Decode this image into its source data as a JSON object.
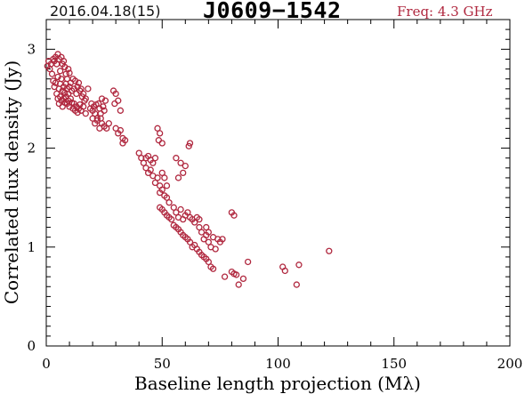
{
  "header": {
    "date": "2016.04.18(15)",
    "source": "J0609−1542",
    "freq": "Freq: 4.3 GHz"
  },
  "colors": {
    "marker": "#b0283f",
    "freq_text": "#b0283f",
    "axis": "#000000"
  },
  "chart_data": {
    "type": "scatter",
    "xlabel": "Baseline length projection (Mλ)",
    "ylabel": "Correlated flux density (Jy)",
    "xlim": [
      0,
      200
    ],
    "ylim": [
      0,
      3.3
    ],
    "x_ticks": [
      0,
      50,
      100,
      150,
      200
    ],
    "y_ticks": [
      0,
      1,
      2,
      3
    ],
    "grid": false,
    "points": [
      [
        0.5,
        2.83
      ],
      [
        1,
        2.88
      ],
      [
        1.5,
        2.8
      ],
      [
        2,
        2.85
      ],
      [
        2.5,
        2.75
      ],
      [
        3,
        2.9
      ],
      [
        3.5,
        2.88
      ],
      [
        4,
        2.92
      ],
      [
        4.5,
        2.85
      ],
      [
        5,
        2.95
      ],
      [
        5.5,
        2.9
      ],
      [
        6,
        2.78
      ],
      [
        6.5,
        2.92
      ],
      [
        7,
        2.85
      ],
      [
        7.5,
        2.88
      ],
      [
        8,
        2.82
      ],
      [
        8.5,
        2.75
      ],
      [
        9,
        2.7
      ],
      [
        9.5,
        2.8
      ],
      [
        10,
        2.76
      ],
      [
        3,
        2.68
      ],
      [
        3.5,
        2.62
      ],
      [
        4,
        2.66
      ],
      [
        4.5,
        2.55
      ],
      [
        5,
        2.72
      ],
      [
        5.5,
        2.6
      ],
      [
        6,
        2.65
      ],
      [
        6.5,
        2.7
      ],
      [
        7,
        2.58
      ],
      [
        7.5,
        2.62
      ],
      [
        8,
        2.56
      ],
      [
        8.5,
        2.65
      ],
      [
        9,
        2.6
      ],
      [
        9.5,
        2.55
      ],
      [
        10,
        2.62
      ],
      [
        10.5,
        2.66
      ],
      [
        11,
        2.58
      ],
      [
        11.5,
        2.7
      ],
      [
        12,
        2.6
      ],
      [
        12.5,
        2.68
      ],
      [
        13,
        2.55
      ],
      [
        13.5,
        2.62
      ],
      [
        14,
        2.66
      ],
      [
        14.5,
        2.58
      ],
      [
        15,
        2.6
      ],
      [
        15.5,
        2.52
      ],
      [
        16,
        2.55
      ],
      [
        16.5,
        2.48
      ],
      [
        17,
        2.5
      ],
      [
        5,
        2.5
      ],
      [
        5.5,
        2.45
      ],
      [
        6,
        2.52
      ],
      [
        6.5,
        2.48
      ],
      [
        7,
        2.42
      ],
      [
        7.5,
        2.5
      ],
      [
        8,
        2.46
      ],
      [
        8.5,
        2.52
      ],
      [
        9,
        2.45
      ],
      [
        9.5,
        2.48
      ],
      [
        10,
        2.42
      ],
      [
        10.5,
        2.5
      ],
      [
        11,
        2.46
      ],
      [
        11.5,
        2.4
      ],
      [
        12,
        2.45
      ],
      [
        12.5,
        2.38
      ],
      [
        13,
        2.42
      ],
      [
        13.5,
        2.36
      ],
      [
        14,
        2.4
      ],
      [
        14.5,
        2.44
      ],
      [
        15,
        2.38
      ],
      [
        16,
        2.42
      ],
      [
        17,
        2.35
      ],
      [
        18,
        2.6
      ],
      [
        19,
        2.4
      ],
      [
        19.5,
        2.45
      ],
      [
        20,
        2.38
      ],
      [
        20.5,
        2.42
      ],
      [
        21,
        2.35
      ],
      [
        21.5,
        2.44
      ],
      [
        22,
        2.3
      ],
      [
        22.5,
        2.45
      ],
      [
        23,
        2.4
      ],
      [
        23.5,
        2.35
      ],
      [
        24,
        2.5
      ],
      [
        24.5,
        2.42
      ],
      [
        25,
        2.38
      ],
      [
        25.5,
        2.48
      ],
      [
        20,
        2.3
      ],
      [
        21,
        2.25
      ],
      [
        22,
        2.28
      ],
      [
        23,
        2.2
      ],
      [
        23.5,
        2.3
      ],
      [
        24,
        2.25
      ],
      [
        25,
        2.22
      ],
      [
        26,
        2.2
      ],
      [
        27,
        2.25
      ],
      [
        29,
        2.58
      ],
      [
        30,
        2.55
      ],
      [
        29.5,
        2.45
      ],
      [
        31,
        2.48
      ],
      [
        32,
        2.38
      ],
      [
        30,
        2.2
      ],
      [
        31,
        2.15
      ],
      [
        32,
        2.18
      ],
      [
        33,
        2.1
      ],
      [
        34,
        2.08
      ],
      [
        33,
        2.05
      ],
      [
        40,
        1.95
      ],
      [
        41,
        1.9
      ],
      [
        42,
        1.85
      ],
      [
        43,
        1.9
      ],
      [
        44,
        1.92
      ],
      [
        45,
        1.88
      ],
      [
        46,
        1.85
      ],
      [
        47,
        1.9
      ],
      [
        43,
        1.8
      ],
      [
        44,
        1.75
      ],
      [
        45,
        1.78
      ],
      [
        46,
        1.72
      ],
      [
        47,
        1.65
      ],
      [
        48,
        1.7
      ],
      [
        49,
        1.62
      ],
      [
        50,
        1.75
      ],
      [
        51,
        1.7
      ],
      [
        52,
        1.62
      ],
      [
        48,
        2.2
      ],
      [
        49,
        2.15
      ],
      [
        48.5,
        2.08
      ],
      [
        50,
        2.05
      ],
      [
        49,
        1.55
      ],
      [
        50,
        1.58
      ],
      [
        51,
        1.52
      ],
      [
        52,
        1.5
      ],
      [
        53,
        1.45
      ],
      [
        49,
        1.4
      ],
      [
        50,
        1.38
      ],
      [
        51,
        1.35
      ],
      [
        52,
        1.32
      ],
      [
        53,
        1.3
      ],
      [
        54,
        1.28
      ],
      [
        55,
        1.4
      ],
      [
        56,
        1.35
      ],
      [
        57,
        1.3
      ],
      [
        58,
        1.38
      ],
      [
        59,
        1.28
      ],
      [
        60,
        1.32
      ],
      [
        61,
        1.35
      ],
      [
        62,
        1.3
      ],
      [
        63,
        1.28
      ],
      [
        64,
        1.25
      ],
      [
        65,
        1.3
      ],
      [
        66,
        1.28
      ],
      [
        55,
        1.22
      ],
      [
        56,
        1.2
      ],
      [
        57,
        1.18
      ],
      [
        58,
        1.15
      ],
      [
        59,
        1.12
      ],
      [
        60,
        1.1
      ],
      [
        61,
        1.08
      ],
      [
        62,
        1.05
      ],
      [
        63,
        1.0
      ],
      [
        64,
        1.02
      ],
      [
        65,
        0.98
      ],
      [
        66,
        0.95
      ],
      [
        67,
        0.92
      ],
      [
        68,
        0.9
      ],
      [
        69,
        0.88
      ],
      [
        70,
        0.85
      ],
      [
        71,
        0.8
      ],
      [
        72,
        0.78
      ],
      [
        62,
        2.05
      ],
      [
        61.5,
        2.02
      ],
      [
        56,
        1.9
      ],
      [
        58,
        1.85
      ],
      [
        60,
        1.82
      ],
      [
        59,
        1.75
      ],
      [
        57,
        1.7
      ],
      [
        68,
        1.08
      ],
      [
        69,
        1.12
      ],
      [
        70,
        1.15
      ],
      [
        72,
        1.1
      ],
      [
        74,
        1.08
      ],
      [
        75,
        1.05
      ],
      [
        66,
        1.2
      ],
      [
        67,
        1.15
      ],
      [
        69,
        1.2
      ],
      [
        70,
        1.05
      ],
      [
        71,
        1.0
      ],
      [
        73,
        0.98
      ],
      [
        76,
        1.08
      ],
      [
        80,
        1.35
      ],
      [
        81,
        1.32
      ],
      [
        80,
        0.75
      ],
      [
        81,
        0.73
      ],
      [
        82,
        0.72
      ],
      [
        85,
        0.68
      ],
      [
        87,
        0.85
      ],
      [
        83,
        0.62
      ],
      [
        77,
        0.7
      ],
      [
        102,
        0.8
      ],
      [
        103,
        0.76
      ],
      [
        108,
        0.62
      ],
      [
        109,
        0.82
      ],
      [
        122,
        0.96
      ]
    ]
  }
}
